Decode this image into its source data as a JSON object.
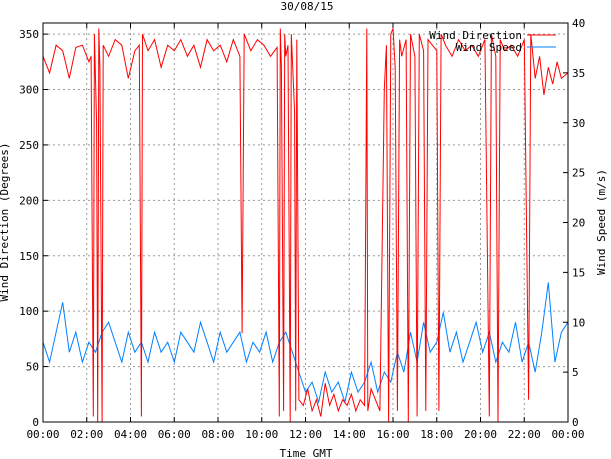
{
  "chart_data": {
    "type": "line",
    "title": "30/08/15",
    "xlabel": "Time GMT",
    "ylabel_left": "Wind Direction (Degrees)",
    "ylabel_right": "Wind Speed (m/s)",
    "x_ticks": [
      "00:00",
      "02:00",
      "04:00",
      "06:00",
      "08:00",
      "10:00",
      "12:00",
      "14:00",
      "16:00",
      "18:00",
      "20:00",
      "22:00",
      "00:00"
    ],
    "y_left_ticks": [
      0,
      50,
      100,
      150,
      200,
      250,
      300,
      350
    ],
    "y_right_ticks": [
      0,
      5,
      10,
      15,
      20,
      25,
      30,
      35,
      40
    ],
    "ylim_left": [
      0,
      360
    ],
    "ylim_right": [
      0,
      40
    ],
    "xlim_hours": [
      0,
      24
    ],
    "grid": true,
    "legend_position": "top-right",
    "series": [
      {
        "name": "Wind Direction",
        "axis": "left",
        "color": "#ff0000",
        "points": [
          [
            0.0,
            330
          ],
          [
            0.3,
            315
          ],
          [
            0.6,
            340
          ],
          [
            0.9,
            335
          ],
          [
            1.2,
            310
          ],
          [
            1.5,
            338
          ],
          [
            1.8,
            340
          ],
          [
            2.1,
            325
          ],
          [
            2.2,
            330
          ],
          [
            2.3,
            5
          ],
          [
            2.35,
            350
          ],
          [
            2.45,
            270
          ],
          [
            2.5,
            0
          ],
          [
            2.55,
            355
          ],
          [
            2.6,
            320
          ],
          [
            2.7,
            0
          ],
          [
            2.75,
            340
          ],
          [
            3.0,
            330
          ],
          [
            3.3,
            345
          ],
          [
            3.6,
            340
          ],
          [
            3.9,
            310
          ],
          [
            4.2,
            335
          ],
          [
            4.4,
            340
          ],
          [
            4.5,
            5
          ],
          [
            4.55,
            350
          ],
          [
            4.8,
            335
          ],
          [
            5.1,
            345
          ],
          [
            5.4,
            320
          ],
          [
            5.7,
            340
          ],
          [
            6.0,
            335
          ],
          [
            6.3,
            345
          ],
          [
            6.6,
            330
          ],
          [
            6.9,
            340
          ],
          [
            7.2,
            320
          ],
          [
            7.5,
            345
          ],
          [
            7.8,
            335
          ],
          [
            8.1,
            340
          ],
          [
            8.4,
            325
          ],
          [
            8.7,
            345
          ],
          [
            9.0,
            330
          ],
          [
            9.1,
            80
          ],
          [
            9.2,
            350
          ],
          [
            9.5,
            335
          ],
          [
            9.8,
            345
          ],
          [
            10.1,
            340
          ],
          [
            10.4,
            330
          ],
          [
            10.7,
            338
          ],
          [
            10.8,
            5
          ],
          [
            10.85,
            355
          ],
          [
            10.9,
            320
          ],
          [
            11.0,
            10
          ],
          [
            11.05,
            350
          ],
          [
            11.1,
            330
          ],
          [
            11.2,
            340
          ],
          [
            11.3,
            0
          ],
          [
            11.35,
            350
          ],
          [
            11.5,
            280
          ],
          [
            11.55,
            10
          ],
          [
            11.6,
            345
          ],
          [
            11.7,
            20
          ],
          [
            11.9,
            15
          ],
          [
            12.1,
            30
          ],
          [
            12.3,
            10
          ],
          [
            12.5,
            20
          ],
          [
            12.7,
            5
          ],
          [
            12.9,
            35
          ],
          [
            13.1,
            15
          ],
          [
            13.3,
            25
          ],
          [
            13.5,
            10
          ],
          [
            13.7,
            20
          ],
          [
            13.9,
            15
          ],
          [
            14.1,
            25
          ],
          [
            14.3,
            10
          ],
          [
            14.5,
            20
          ],
          [
            14.7,
            15
          ],
          [
            14.8,
            355
          ],
          [
            14.85,
            10
          ],
          [
            15.0,
            30
          ],
          [
            15.2,
            20
          ],
          [
            15.4,
            10
          ],
          [
            15.6,
            300
          ],
          [
            15.7,
            340
          ],
          [
            15.8,
            0
          ],
          [
            15.9,
            350
          ],
          [
            16.0,
            355
          ],
          [
            16.1,
            320
          ],
          [
            16.2,
            10
          ],
          [
            16.3,
            345
          ],
          [
            16.4,
            330
          ],
          [
            16.6,
            345
          ],
          [
            16.7,
            0
          ],
          [
            16.8,
            350
          ],
          [
            17.0,
            330
          ],
          [
            17.1,
            5
          ],
          [
            17.2,
            350
          ],
          [
            17.4,
            335
          ],
          [
            17.5,
            10
          ],
          [
            17.6,
            345
          ],
          [
            17.8,
            340
          ],
          [
            18.0,
            335
          ],
          [
            18.1,
            10
          ],
          [
            18.2,
            350
          ],
          [
            18.4,
            340
          ],
          [
            18.7,
            330
          ],
          [
            19.0,
            345
          ],
          [
            19.3,
            335
          ],
          [
            19.6,
            340
          ],
          [
            19.9,
            330
          ],
          [
            20.2,
            345
          ],
          [
            20.4,
            5
          ],
          [
            20.5,
            350
          ],
          [
            20.7,
            330
          ],
          [
            20.8,
            0
          ],
          [
            20.9,
            345
          ],
          [
            21.1,
            335
          ],
          [
            21.4,
            340
          ],
          [
            21.7,
            330
          ],
          [
            22.0,
            345
          ],
          [
            22.2,
            20
          ],
          [
            22.3,
            350
          ],
          [
            22.5,
            310
          ],
          [
            22.7,
            330
          ],
          [
            22.9,
            295
          ],
          [
            23.1,
            320
          ],
          [
            23.3,
            305
          ],
          [
            23.5,
            325
          ],
          [
            23.7,
            310
          ],
          [
            24.0,
            315
          ]
        ]
      },
      {
        "name": "Wind Speed",
        "axis": "right",
        "color": "#0080ff",
        "points": [
          [
            0.0,
            8
          ],
          [
            0.3,
            6
          ],
          [
            0.6,
            9
          ],
          [
            0.9,
            12
          ],
          [
            1.2,
            7
          ],
          [
            1.5,
            9
          ],
          [
            1.8,
            6
          ],
          [
            2.1,
            8
          ],
          [
            2.4,
            7
          ],
          [
            2.7,
            9
          ],
          [
            3.0,
            10
          ],
          [
            3.3,
            8
          ],
          [
            3.6,
            6
          ],
          [
            3.9,
            9
          ],
          [
            4.2,
            7
          ],
          [
            4.5,
            8
          ],
          [
            4.8,
            6
          ],
          [
            5.1,
            9
          ],
          [
            5.4,
            7
          ],
          [
            5.7,
            8
          ],
          [
            6.0,
            6
          ],
          [
            6.3,
            9
          ],
          [
            6.6,
            8
          ],
          [
            6.9,
            7
          ],
          [
            7.2,
            10
          ],
          [
            7.5,
            8
          ],
          [
            7.8,
            6
          ],
          [
            8.1,
            9
          ],
          [
            8.4,
            7
          ],
          [
            8.7,
            8
          ],
          [
            9.0,
            9
          ],
          [
            9.3,
            6
          ],
          [
            9.6,
            8
          ],
          [
            9.9,
            7
          ],
          [
            10.2,
            9
          ],
          [
            10.5,
            6
          ],
          [
            10.8,
            8
          ],
          [
            11.1,
            9
          ],
          [
            11.4,
            7
          ],
          [
            11.7,
            5
          ],
          [
            12.0,
            3
          ],
          [
            12.3,
            4
          ],
          [
            12.6,
            2
          ],
          [
            12.9,
            5
          ],
          [
            13.2,
            3
          ],
          [
            13.5,
            4
          ],
          [
            13.8,
            2
          ],
          [
            14.1,
            5
          ],
          [
            14.4,
            3
          ],
          [
            14.7,
            4
          ],
          [
            15.0,
            6
          ],
          [
            15.3,
            3
          ],
          [
            15.6,
            5
          ],
          [
            15.9,
            4
          ],
          [
            16.2,
            7
          ],
          [
            16.5,
            5
          ],
          [
            16.8,
            9
          ],
          [
            17.1,
            6
          ],
          [
            17.4,
            10
          ],
          [
            17.7,
            7
          ],
          [
            18.0,
            8
          ],
          [
            18.3,
            11
          ],
          [
            18.6,
            7
          ],
          [
            18.9,
            9
          ],
          [
            19.2,
            6
          ],
          [
            19.5,
            8
          ],
          [
            19.8,
            10
          ],
          [
            20.1,
            7
          ],
          [
            20.4,
            9
          ],
          [
            20.7,
            6
          ],
          [
            21.0,
            8
          ],
          [
            21.3,
            7
          ],
          [
            21.6,
            10
          ],
          [
            21.9,
            6
          ],
          [
            22.2,
            8
          ],
          [
            22.5,
            5
          ],
          [
            22.8,
            9
          ],
          [
            23.1,
            14
          ],
          [
            23.4,
            6
          ],
          [
            23.7,
            9
          ],
          [
            24.0,
            10
          ]
        ]
      }
    ]
  }
}
